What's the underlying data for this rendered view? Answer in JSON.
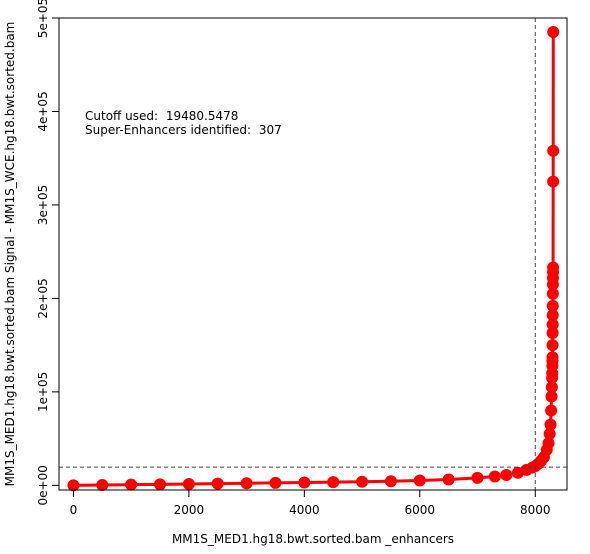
{
  "chart_data": {
    "type": "scatter",
    "title": "",
    "xlabel": "MM1S_MED1.hg18.bwt.sorted.bam _enhancers",
    "ylabel": "MM1S_MED1.hg18.bwt.sorted.bam  Signal - MM1S_WCE.hg18.bwt.sorted.bam",
    "xlim": [
      -250,
      8550
    ],
    "ylim": [
      -5000,
      500000
    ],
    "xticks": [
      0,
      2000,
      4000,
      6000,
      8000
    ],
    "xtick_labels": [
      "0",
      "2000",
      "4000",
      "6000",
      "8000"
    ],
    "yticks": [
      0,
      100000,
      200000,
      300000,
      400000,
      500000
    ],
    "ytick_labels": [
      "0e+00",
      "1e+05",
      "2e+05",
      "3e+05",
      "4e+05",
      "5e+05"
    ],
    "grid": false,
    "cutoff": {
      "x": 8000,
      "y": 19480.5478
    },
    "annotations": [
      {
        "label": "Cutoff used:",
        "value": "19480.5478"
      },
      {
        "label": "Super-Enhancers identified:",
        "value": "307"
      }
    ],
    "series": [
      {
        "color": "#ff0000",
        "x": [
          0,
          500,
          1000,
          1500,
          2000,
          2500,
          3000,
          3500,
          4000,
          4500,
          5000,
          5500,
          6000,
          6500,
          7000,
          7300,
          7500,
          7700,
          7850,
          7950,
          8000,
          8050,
          8100,
          8150,
          8200,
          8230,
          8250,
          8265,
          8275,
          8282,
          8288,
          8292,
          8295,
          8297,
          8298,
          8299,
          8300,
          8301,
          8302,
          8303,
          8304,
          8305,
          8306,
          8307,
          8308,
          8309,
          8310,
          8311,
          8312
        ],
        "y": [
          0,
          300,
          700,
          1000,
          1400,
          1800,
          2200,
          2600,
          3000,
          3400,
          3800,
          4400,
          5200,
          6200,
          8000,
          9500,
          11000,
          13500,
          16500,
          19000,
          20500,
          23000,
          26000,
          30000,
          38000,
          45000,
          55000,
          65000,
          80000,
          95000,
          105000,
          115000,
          120000,
          128000,
          133000,
          137000,
          150000,
          163000,
          172000,
          182000,
          192000,
          205000,
          215000,
          222000,
          228000,
          233000,
          325000,
          358000,
          485000
        ]
      }
    ]
  }
}
